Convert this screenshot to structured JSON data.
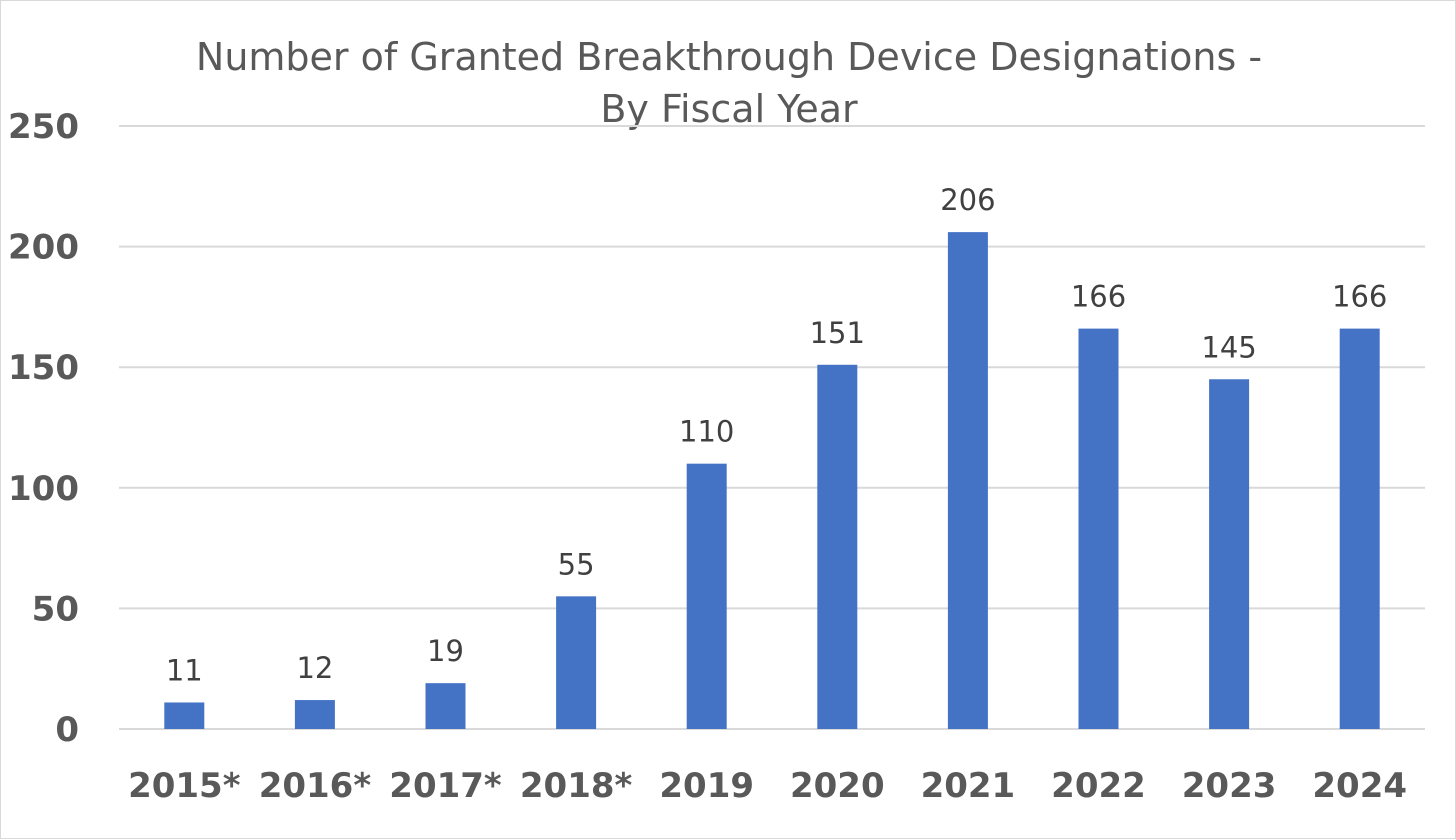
{
  "chart_data": {
    "type": "bar",
    "title": "Number of Granted Breakthrough Device Designations - By Fiscal Year",
    "title_lines": [
      "Number of Granted Breakthrough Device Designations -",
      "By Fiscal Year"
    ],
    "categories": [
      "2015*",
      "2016*",
      "2017*",
      "2018*",
      "2019",
      "2020",
      "2021",
      "2022",
      "2023",
      "2024"
    ],
    "values": [
      11,
      12,
      19,
      55,
      110,
      151,
      206,
      166,
      145,
      166
    ],
    "y_ticks": [
      0,
      50,
      100,
      150,
      200,
      250
    ],
    "ylim": [
      0,
      250
    ],
    "xlabel": "",
    "ylabel": "",
    "grid": true,
    "legend": "none",
    "data_labels": true,
    "bar_color": "#4472C4"
  }
}
